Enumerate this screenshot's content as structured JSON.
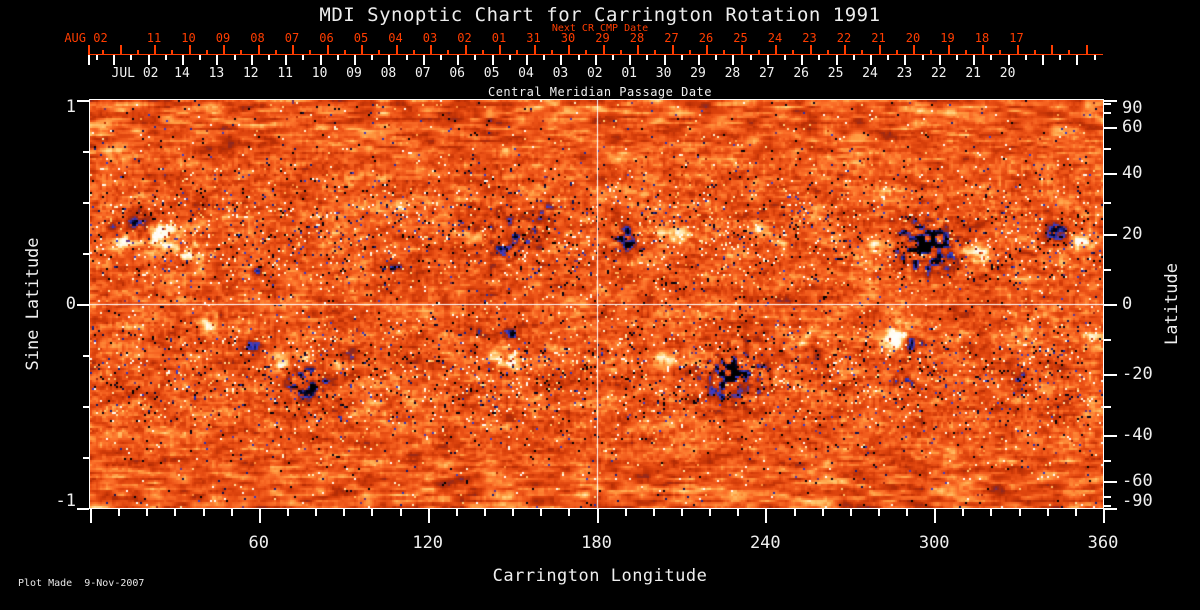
{
  "title": "MDI Synoptic Chart for Carrington Rotation 1991",
  "top_axis": {
    "red_axis_label": "Next CR CMP Date",
    "red_month": "AUG 02",
    "red_days": [
      "11",
      "10",
      "09",
      "08",
      "07",
      "06",
      "05",
      "04",
      "03",
      "02",
      "01",
      "31",
      "30",
      "29",
      "28",
      "27",
      "26",
      "25",
      "24",
      "23",
      "22",
      "21",
      "20",
      "19",
      "18",
      "17"
    ],
    "white_month": "JUL 02",
    "white_days": [
      "14",
      "13",
      "12",
      "11",
      "10",
      "09",
      "08",
      "07",
      "06",
      "05",
      "04",
      "03",
      "02",
      "01",
      "30",
      "29",
      "28",
      "27",
      "26",
      "25",
      "24",
      "23",
      "22",
      "21",
      "20"
    ],
    "white_axis_label": "Central Meridian Passage Date"
  },
  "left_axis": {
    "label": "Sine Latitude",
    "ticks": [
      1,
      0,
      -1
    ]
  },
  "right_axis": {
    "label": "Latitude",
    "ticks": [
      90,
      60,
      40,
      20,
      0,
      -20,
      -40,
      -60,
      -90
    ]
  },
  "bottom_axis": {
    "label": "Carrington Longitude",
    "ticks": [
      60,
      120,
      180,
      240,
      300,
      360
    ]
  },
  "footer": "Plot Made  9-Nov-2007",
  "colors": {
    "background": "#000000",
    "text": "#efefef",
    "date_red": "#ff3d00",
    "quiet_sun": "#ee5214",
    "positive_field": "#ffffff",
    "negative_field": "#2a36c8",
    "crosshair": "#ffffff"
  },
  "chart_data": {
    "type": "heatmap",
    "title": "MDI Synoptic Chart for Carrington Rotation 1991",
    "xlabel": "Carrington Longitude",
    "ylabel_left": "Sine Latitude",
    "ylabel_right": "Latitude",
    "x_range": [
      0,
      360
    ],
    "y_range_sine_latitude": [
      -1,
      1
    ],
    "x_major_ticks": [
      60,
      120,
      180,
      240,
      300,
      360
    ],
    "x_minor_tick_step": 10,
    "right_axis_labeled_latitudes": [
      90,
      60,
      40,
      20,
      0,
      -20,
      -40,
      -60,
      -90
    ],
    "right_axis_minor_latitude_step": 10,
    "left_axis_labeled": [
      1,
      0,
      -1
    ],
    "crosshair": {
      "longitude": 180,
      "sine_latitude": 0
    },
    "grid": "crosshair only",
    "legend": "none",
    "field_palette": {
      "strong_negative": "#000000",
      "negative": "#2a36c8",
      "quiet": "#ee5214",
      "positive": "#ffdd77",
      "strong_positive": "#ffffff"
    },
    "active_regions": [
      {
        "lon": 18,
        "sine_lat": 0.39,
        "polarity": -1,
        "radius_px": 13,
        "strength": 2.7,
        "scatter": 0
      },
      {
        "lon": 26,
        "sine_lat": 0.34,
        "polarity": 1,
        "radius_px": 15,
        "strength": 2.9,
        "scatter": 0
      },
      {
        "lon": 12,
        "sine_lat": 0.31,
        "polarity": 1,
        "radius_px": 9,
        "strength": 2.3,
        "scatter": 0
      },
      {
        "lon": 8,
        "sine_lat": 0.38,
        "polarity": -1,
        "radius_px": 6,
        "strength": 1.8,
        "scatter": 0
      },
      {
        "lon": 36,
        "sine_lat": 0.24,
        "polarity": 1,
        "radius_px": 14,
        "strength": 1.3,
        "scatter": 0.5
      },
      {
        "lon": 59,
        "sine_lat": 0.17,
        "polarity": -1,
        "radius_px": 5,
        "strength": 1.6,
        "scatter": 0
      },
      {
        "lon": 108,
        "sine_lat": 0.18,
        "polarity": -1,
        "radius_px": 5,
        "strength": 1.5,
        "scatter": 0.3
      },
      {
        "lon": 150,
        "sine_lat": 0.32,
        "polarity": -1,
        "radius_px": 26,
        "strength": 1.7,
        "scatter": 0.8
      },
      {
        "lon": 162,
        "sine_lat": 0.47,
        "polarity": -1,
        "radius_px": 10,
        "strength": 1.5,
        "scatter": 0.6
      },
      {
        "lon": 190,
        "sine_lat": 0.32,
        "polarity": -1,
        "radius_px": 14,
        "strength": 2.3,
        "scatter": 0.4
      },
      {
        "lon": 208,
        "sine_lat": 0.34,
        "polarity": 1,
        "radius_px": 10,
        "strength": 2.1,
        "scatter": 0
      },
      {
        "lon": 238,
        "sine_lat": 0.37,
        "polarity": 1,
        "radius_px": 9,
        "strength": 1.8,
        "scatter": 0
      },
      {
        "lon": 245,
        "sine_lat": 0.29,
        "polarity": 1,
        "radius_px": 7,
        "strength": 1.5,
        "scatter": 0
      },
      {
        "lon": 280,
        "sine_lat": 0.3,
        "polarity": 1,
        "radius_px": 8,
        "strength": 1.7,
        "scatter": 0
      },
      {
        "lon": 297,
        "sine_lat": 0.29,
        "polarity": -1,
        "radius_px": 24,
        "strength": 2.9,
        "scatter": 0.4
      },
      {
        "lon": 315,
        "sine_lat": 0.24,
        "polarity": 1,
        "radius_px": 9,
        "strength": 2.3,
        "scatter": 0
      },
      {
        "lon": 343,
        "sine_lat": 0.36,
        "polarity": -1,
        "radius_px": 10,
        "strength": 2.5,
        "scatter": 0
      },
      {
        "lon": 352,
        "sine_lat": 0.31,
        "polarity": 1,
        "radius_px": 10,
        "strength": 2.5,
        "scatter": 0
      },
      {
        "lon": 41,
        "sine_lat": -0.11,
        "polarity": 1,
        "radius_px": 8,
        "strength": 1.9,
        "scatter": 0
      },
      {
        "lon": 44,
        "sine_lat": -0.05,
        "polarity": -1,
        "radius_px": 6,
        "strength": 1.6,
        "scatter": 0.3
      },
      {
        "lon": 58,
        "sine_lat": -0.2,
        "polarity": -1,
        "radius_px": 7,
        "strength": 1.8,
        "scatter": 0
      },
      {
        "lon": 67,
        "sine_lat": -0.29,
        "polarity": 1,
        "radius_px": 9,
        "strength": 2.1,
        "scatter": 0
      },
      {
        "lon": 77,
        "sine_lat": -0.38,
        "polarity": -1,
        "radius_px": 15,
        "strength": 2.7,
        "scatter": 0.3
      },
      {
        "lon": 75,
        "sine_lat": -0.25,
        "polarity": 1,
        "radius_px": 7,
        "strength": 1.9,
        "scatter": 0
      },
      {
        "lon": 92,
        "sine_lat": -0.25,
        "polarity": -1,
        "radius_px": 6,
        "strength": 1.6,
        "scatter": 0
      },
      {
        "lon": 88,
        "sine_lat": -0.29,
        "polarity": 1,
        "radius_px": 5,
        "strength": 1.4,
        "scatter": 0
      },
      {
        "lon": 102,
        "sine_lat": -0.5,
        "polarity": 1,
        "radius_px": 9,
        "strength": 1.9,
        "scatter": 0
      },
      {
        "lon": 139,
        "sine_lat": -0.13,
        "polarity": -1,
        "radius_px": 6,
        "strength": 1.5,
        "scatter": 0.3
      },
      {
        "lon": 148,
        "sine_lat": -0.26,
        "polarity": 1,
        "radius_px": 10,
        "strength": 2.1,
        "scatter": 0
      },
      {
        "lon": 148,
        "sine_lat": -0.15,
        "polarity": -1,
        "radius_px": 7,
        "strength": 1.8,
        "scatter": 0.3
      },
      {
        "lon": 204,
        "sine_lat": -0.25,
        "polarity": 1,
        "radius_px": 8,
        "strength": 1.8,
        "scatter": 0
      },
      {
        "lon": 228,
        "sine_lat": -0.33,
        "polarity": -1,
        "radius_px": 26,
        "strength": 2.5,
        "scatter": 0.6
      },
      {
        "lon": 252,
        "sine_lat": -0.17,
        "polarity": 1,
        "radius_px": 6,
        "strength": 1.7,
        "scatter": 0
      },
      {
        "lon": 257,
        "sine_lat": -0.22,
        "polarity": -1,
        "radius_px": 7,
        "strength": 1.9,
        "scatter": 0
      },
      {
        "lon": 287,
        "sine_lat": -0.16,
        "polarity": 1,
        "radius_px": 14,
        "strength": 2.7,
        "scatter": 0
      },
      {
        "lon": 292,
        "sine_lat": -0.19,
        "polarity": -1,
        "radius_px": 9,
        "strength": 3.0,
        "scatter": 0
      },
      {
        "lon": 289,
        "sine_lat": -0.38,
        "polarity": -1,
        "radius_px": 9,
        "strength": 1.7,
        "scatter": 0.5
      },
      {
        "lon": 331,
        "sine_lat": -0.37,
        "polarity": -1,
        "radius_px": 10,
        "strength": 1.6,
        "scatter": 0.7
      },
      {
        "lon": 355,
        "sine_lat": -0.16,
        "polarity": 1,
        "radius_px": 6,
        "strength": 1.5,
        "scatter": 0
      }
    ]
  }
}
